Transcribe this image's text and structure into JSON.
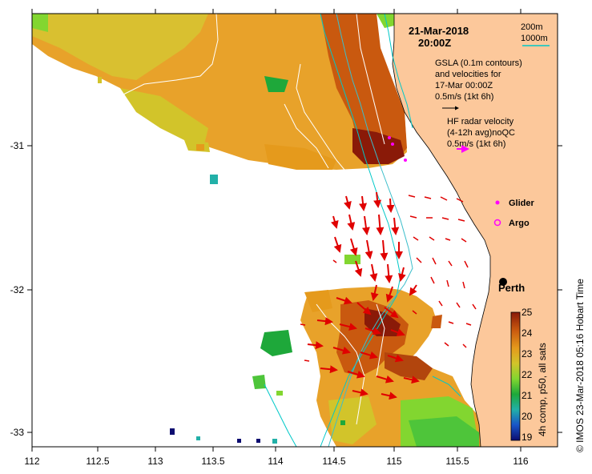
{
  "map": {
    "date_line": "21-Mar-2018",
    "time_line": "20:00Z",
    "depth_legend": [
      "200m",
      "1000m"
    ],
    "gsla_lines": [
      "GSLA (0.1m contours)",
      "and velocities for",
      "17-Mar 00:00Z",
      "0.5m/s (1kt 6h)"
    ],
    "hf_lines": [
      "HF radar velocity",
      "(4-12h avg)noQC",
      "0.5m/s (1kt 6h)"
    ],
    "glider_label": "Glider",
    "argo_label": "Argo",
    "city_label": "Perth",
    "x_ticks": [
      "112",
      "112.5",
      "113",
      "113.5",
      "114",
      "114.5",
      "115",
      "115.5",
      "116"
    ],
    "y_ticks": [
      "-31",
      "-32",
      "-33"
    ],
    "colorbar_ticks": [
      "25",
      "24",
      "23",
      "22",
      "21",
      "20",
      "19"
    ],
    "colorbar_title": "4h comp, p50, all sats",
    "credit": "© IMOS 23-Mar-2018 05:16 Hobart Time",
    "colors": {
      "land": "#fcc89b",
      "arrow_hf": "#e00000",
      "glider": "#ff00ff",
      "contour_200": "#00c8c8",
      "contour_1000": "#3cbecb"
    }
  }
}
